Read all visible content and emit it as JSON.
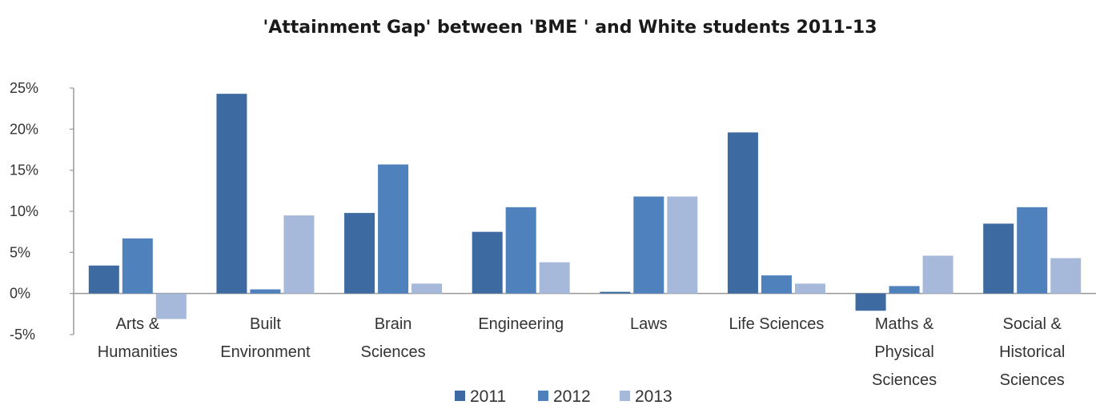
{
  "chart_data": {
    "type": "bar",
    "title": "'Attainment Gap' between 'BME ' and White students 2011-13",
    "xlabel": "",
    "ylabel": "",
    "ylim": [
      -0.05,
      0.25
    ],
    "yticks": [
      {
        "value": 0.25,
        "label": "25%"
      },
      {
        "value": 0.2,
        "label": "20%"
      },
      {
        "value": 0.15,
        "label": "15%"
      },
      {
        "value": 0.1,
        "label": "10%"
      },
      {
        "value": 0.05,
        "label": "5%"
      },
      {
        "value": 0.0,
        "label": "0%"
      },
      {
        "value": -0.05,
        "label": "-5%"
      }
    ],
    "categories": [
      [
        "Arts &",
        "Humanities"
      ],
      [
        "Built",
        "Environment"
      ],
      [
        "Brain",
        "Sciences"
      ],
      [
        "Engineering"
      ],
      [
        "Laws"
      ],
      [
        "Life Sciences"
      ],
      [
        "Maths &",
        "Physical",
        "Sciences"
      ],
      [
        "Social &",
        "Historical",
        "Sciences"
      ]
    ],
    "series": [
      {
        "name": "2011",
        "color": "#3d6aa0",
        "values": [
          0.034,
          0.243,
          0.098,
          0.075,
          0.002,
          0.196,
          -0.021,
          0.085
        ]
      },
      {
        "name": "2012",
        "color": "#4f81bd",
        "values": [
          0.067,
          0.005,
          0.157,
          0.105,
          0.118,
          0.022,
          0.009,
          0.105
        ]
      },
      {
        "name": "2013",
        "color": "#a7b9da",
        "values": [
          -0.031,
          0.095,
          0.012,
          0.038,
          0.118,
          0.012,
          0.046,
          0.043
        ]
      }
    ],
    "grid": false,
    "legend": "bottom"
  }
}
